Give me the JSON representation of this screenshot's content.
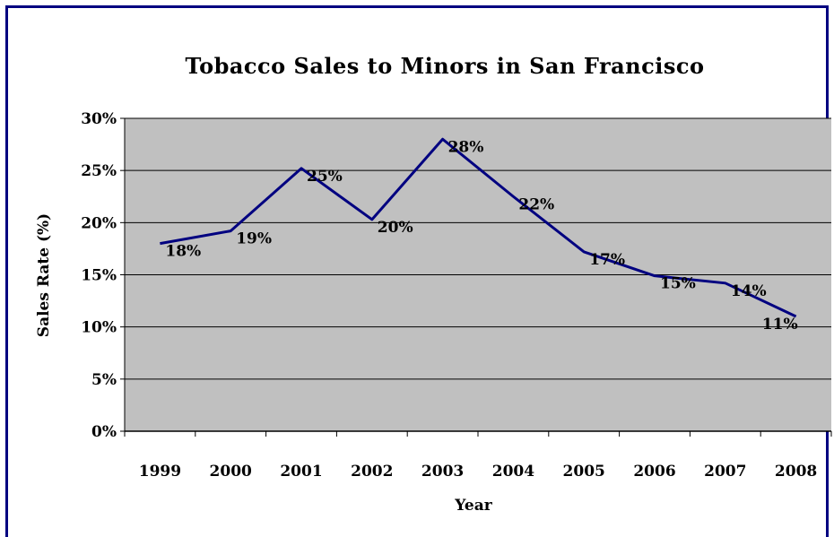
{
  "chart_data": {
    "type": "line",
    "title": "Tobacco Sales to Minors in San Francisco",
    "xlabel": "Year",
    "ylabel": "Sales Rate (%)",
    "categories": [
      "1999",
      "2000",
      "2001",
      "2002",
      "2003",
      "2004",
      "2005",
      "2006",
      "2007",
      "2008"
    ],
    "series": [
      {
        "values": [
          18,
          19.2,
          25.2,
          20.3,
          28,
          22.5,
          17.2,
          14.9,
          14.2,
          11
        ]
      }
    ],
    "data_labels": [
      "18%",
      "19%",
      "25%",
      "20%",
      "28%",
      "22%",
      "17%",
      "15%",
      "14%",
      "11%"
    ],
    "ylim": [
      0,
      30
    ],
    "yticks": [
      0,
      5,
      10,
      15,
      20,
      25,
      30
    ],
    "ytick_labels": [
      "0%",
      "5%",
      "10%",
      "15%",
      "20%",
      "25%",
      "30%"
    ],
    "grid": true,
    "legend": "none",
    "colors": {
      "line": "#000080",
      "plot_background": "#c0c0c0",
      "frame": "#000080"
    }
  }
}
